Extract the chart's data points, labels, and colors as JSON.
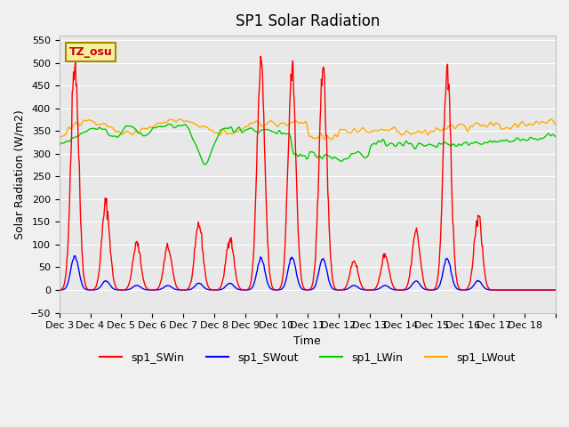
{
  "title": "SP1 Solar Radiation",
  "xlabel": "Time",
  "ylabel": "Solar Radiation (W/m2)",
  "ylim": [
    -50,
    560
  ],
  "yticks": [
    -50,
    0,
    50,
    100,
    150,
    200,
    250,
    300,
    350,
    400,
    450,
    500,
    550
  ],
  "annotation_text": "TZ_osu",
  "annotation_color": "#cc0000",
  "annotation_bg": "#f5f0a0",
  "annotation_border": "#aa8800",
  "bg_color": "#e8e8e8",
  "grid_color": "#ffffff",
  "line_colors": {
    "SWin": "#ff0000",
    "SWout": "#0000ff",
    "LWin": "#00cc00",
    "LWout": "#ffaa00"
  },
  "legend_labels": [
    "sp1_SWin",
    "sp1_SWout",
    "sp1_LWin",
    "sp1_LWout"
  ],
  "x_tick_labels": [
    "Dec 3",
    "Dec 4",
    "Dec 5",
    "Dec 6",
    "Dec 7",
    "Dec 8",
    "Dec 9",
    "Dec 10",
    "Dec 11",
    "Dec 12",
    "Dec 13",
    "Dec 14",
    "Dec 15",
    "Dec 16",
    "Dec 17",
    "Dec 18"
  ],
  "n_days": 16,
  "pts_per_day": 48
}
